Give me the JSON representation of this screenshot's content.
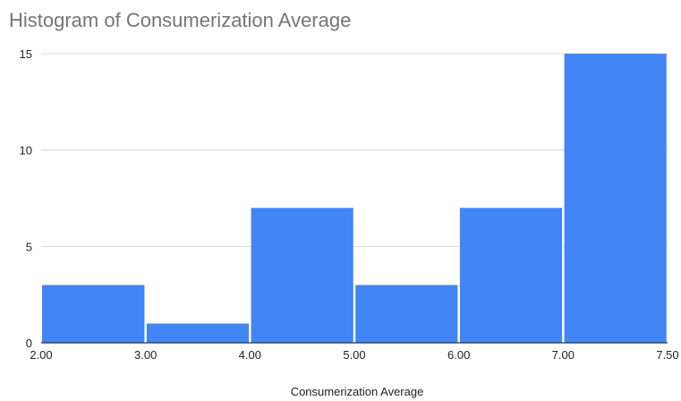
{
  "chart_data": {
    "type": "bar",
    "title": "Histogram of Consumerization Average",
    "xlabel": "Consumerization Average",
    "ylabel": "",
    "bins": [
      {
        "start": 2.0,
        "end": 3.0,
        "count": 3
      },
      {
        "start": 3.0,
        "end": 4.0,
        "count": 1
      },
      {
        "start": 4.0,
        "end": 5.0,
        "count": 7
      },
      {
        "start": 5.0,
        "end": 6.0,
        "count": 3
      },
      {
        "start": 6.0,
        "end": 7.0,
        "count": 7
      },
      {
        "start": 7.0,
        "end": 7.5,
        "count": 15
      }
    ],
    "x_tick_labels": [
      "2.00",
      "3.00",
      "4.00",
      "5.00",
      "6.00",
      "7.00",
      "7.50"
    ],
    "y_ticks": [
      0,
      5,
      10,
      15
    ],
    "ylim": [
      0,
      15
    ],
    "grid": true,
    "legend": "none",
    "bar_color": "#4285F4"
  }
}
